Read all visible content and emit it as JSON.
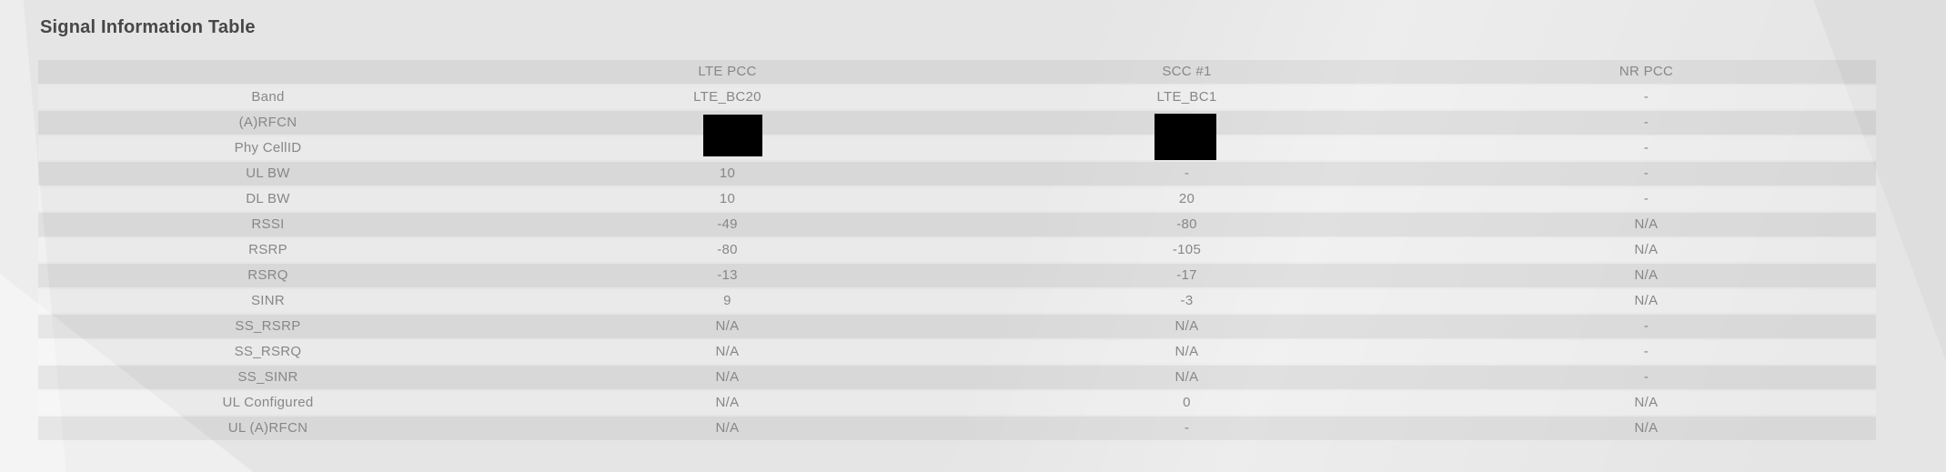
{
  "page": {
    "title": "Signal Information Table"
  },
  "colors": {
    "background": "#e5e5e5",
    "row_dark": "#d9d9d9",
    "row_light": "#eaeaea",
    "title_text": "#474747",
    "table_text": "#878787",
    "redaction": "#000000"
  },
  "table": {
    "columns": [
      "",
      "LTE PCC",
      "SCC #1",
      "NR PCC"
    ],
    "rows": [
      {
        "label": "Band",
        "values": [
          "LTE_BC20",
          "LTE_BC1",
          "-"
        ]
      },
      {
        "label": "(A)RFCN",
        "values": [
          "",
          "",
          "-"
        ],
        "redacted": true
      },
      {
        "label": "Phy CellID",
        "values": [
          "",
          "",
          "-"
        ],
        "redacted": true
      },
      {
        "label": "UL BW",
        "values": [
          "10",
          "-",
          "-"
        ]
      },
      {
        "label": "DL BW",
        "values": [
          "10",
          "20",
          "-"
        ]
      },
      {
        "label": "RSSI",
        "values": [
          "-49",
          "-80",
          "N/A"
        ]
      },
      {
        "label": "RSRP",
        "values": [
          "-80",
          "-105",
          "N/A"
        ]
      },
      {
        "label": "RSRQ",
        "values": [
          "-13",
          "-17",
          "N/A"
        ]
      },
      {
        "label": "SINR",
        "values": [
          "9",
          "-3",
          "N/A"
        ]
      },
      {
        "label": "SS_RSRP",
        "values": [
          "N/A",
          "N/A",
          "-"
        ]
      },
      {
        "label": "SS_RSRQ",
        "values": [
          "N/A",
          "N/A",
          "-"
        ]
      },
      {
        "label": "SS_SINR",
        "values": [
          "N/A",
          "N/A",
          "-"
        ]
      },
      {
        "label": "UL Configured",
        "values": [
          "N/A",
          "0",
          "N/A"
        ]
      },
      {
        "label": "UL (A)RFCN",
        "values": [
          "N/A",
          "-",
          "N/A"
        ]
      }
    ],
    "redaction_note": "black boxes cover (A)RFCN and Phy CellID values in LTE PCC and SCC #1 columns"
  }
}
